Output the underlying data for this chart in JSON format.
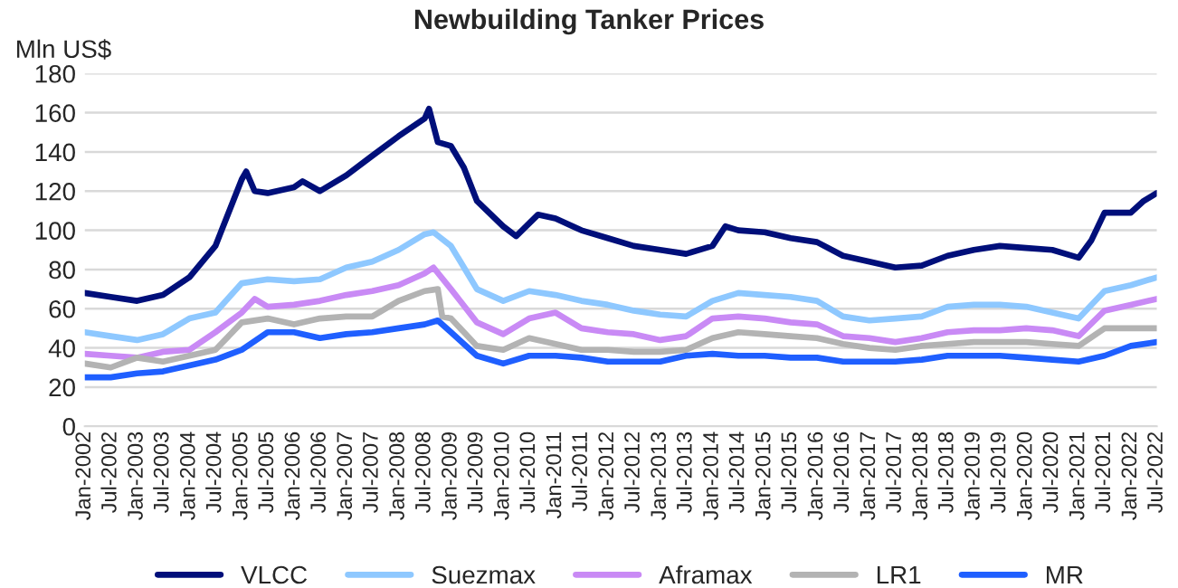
{
  "chart_data": {
    "type": "line",
    "title": "Newbuilding Tanker Prices",
    "ylabel": "Mln US$",
    "ylim": [
      0,
      180
    ],
    "yticks": [
      0,
      20,
      40,
      60,
      80,
      100,
      120,
      140,
      160,
      180
    ],
    "xlim": [
      "2002-01",
      "2022-07"
    ],
    "xticks": [
      {
        "value": "2002-01",
        "label": "Jan-2002"
      },
      {
        "value": "2002-07",
        "label": "Jul-2002"
      },
      {
        "value": "2003-01",
        "label": "Jan-2003"
      },
      {
        "value": "2003-07",
        "label": "Jul-2003"
      },
      {
        "value": "2004-01",
        "label": "Jan-2004"
      },
      {
        "value": "2004-07",
        "label": "Jul-2004"
      },
      {
        "value": "2005-01",
        "label": "Jan-2005"
      },
      {
        "value": "2005-07",
        "label": "Jul-2005"
      },
      {
        "value": "2006-01",
        "label": "Jan-2006"
      },
      {
        "value": "2006-07",
        "label": "Jul-2006"
      },
      {
        "value": "2007-01",
        "label": "Jan-2007"
      },
      {
        "value": "2007-07",
        "label": "Jul-2007"
      },
      {
        "value": "2008-01",
        "label": "Jan-2008"
      },
      {
        "value": "2008-07",
        "label": "Jul-2008"
      },
      {
        "value": "2009-01",
        "label": "Jan-2009"
      },
      {
        "value": "2009-07",
        "label": "Jul-2009"
      },
      {
        "value": "2010-01",
        "label": "Jan-2010"
      },
      {
        "value": "2010-07",
        "label": "Jul-2010"
      },
      {
        "value": "2011-01",
        "label": "Jan-2011"
      },
      {
        "value": "2011-07",
        "label": "Jul-2011"
      },
      {
        "value": "2012-01",
        "label": "Jan-2012"
      },
      {
        "value": "2012-07",
        "label": "Jul-2012"
      },
      {
        "value": "2013-01",
        "label": "Jan-2013"
      },
      {
        "value": "2013-07",
        "label": "Jul-2013"
      },
      {
        "value": "2014-01",
        "label": "Jan-2014"
      },
      {
        "value": "2014-07",
        "label": "Jul-2014"
      },
      {
        "value": "2015-01",
        "label": "Jan-2015"
      },
      {
        "value": "2015-07",
        "label": "Jul-2015"
      },
      {
        "value": "2016-01",
        "label": "Jan-2016"
      },
      {
        "value": "2016-07",
        "label": "Jul-2016"
      },
      {
        "value": "2017-01",
        "label": "Jan-2017"
      },
      {
        "value": "2017-07",
        "label": "Jul-2017"
      },
      {
        "value": "2018-01",
        "label": "Jan-2018"
      },
      {
        "value": "2018-07",
        "label": "Jul-2018"
      },
      {
        "value": "2019-01",
        "label": "Jan-2019"
      },
      {
        "value": "2019-07",
        "label": "Jul-2019"
      },
      {
        "value": "2020-01",
        "label": "Jan-2020"
      },
      {
        "value": "2020-07",
        "label": "Jul-2020"
      },
      {
        "value": "2021-01",
        "label": "Jan-2021"
      },
      {
        "value": "2021-07",
        "label": "Jul-2021"
      },
      {
        "value": "2022-01",
        "label": "Jan-2022"
      },
      {
        "value": "2022-07",
        "label": "Jul-2022"
      }
    ],
    "grid": "y",
    "legend": "bottom",
    "marker": "none",
    "line_style": "solid",
    "series": [
      {
        "name": "VLCC",
        "color": "#000f7a",
        "x": [
          "2002-01",
          "2002-07",
          "2003-01",
          "2003-07",
          "2004-01",
          "2004-07",
          "2005-01",
          "2005-02",
          "2005-04",
          "2005-07",
          "2006-01",
          "2006-03",
          "2006-07",
          "2007-01",
          "2007-07",
          "2008-01",
          "2008-07",
          "2008-08",
          "2008-10",
          "2009-01",
          "2009-04",
          "2009-07",
          "2010-01",
          "2010-04",
          "2010-09",
          "2011-01",
          "2011-07",
          "2012-01",
          "2012-07",
          "2013-01",
          "2013-07",
          "2014-01",
          "2014-04",
          "2014-07",
          "2015-01",
          "2015-07",
          "2016-01",
          "2016-07",
          "2017-01",
          "2017-07",
          "2018-01",
          "2018-07",
          "2019-01",
          "2019-07",
          "2020-01",
          "2020-07",
          "2021-01",
          "2021-04",
          "2021-07",
          "2022-01",
          "2022-04",
          "2022-07"
        ],
        "values": [
          68,
          66,
          64,
          67,
          76,
          92,
          126,
          130,
          120,
          119,
          122,
          125,
          120,
          128,
          138,
          148,
          157,
          162,
          145,
          143,
          132,
          115,
          102,
          97,
          108,
          106,
          100,
          96,
          92,
          90,
          88,
          92,
          102,
          100,
          99,
          96,
          94,
          87,
          84,
          81,
          82,
          87,
          90,
          92,
          91,
          90,
          86,
          95,
          109,
          109,
          115,
          119
        ]
      },
      {
        "name": "Suezmax",
        "color": "#8ec8ff",
        "x": [
          "2002-01",
          "2002-07",
          "2003-01",
          "2003-07",
          "2004-01",
          "2004-07",
          "2005-01",
          "2005-07",
          "2006-01",
          "2006-07",
          "2007-01",
          "2007-07",
          "2008-01",
          "2008-07",
          "2008-09",
          "2009-01",
          "2009-07",
          "2010-01",
          "2010-07",
          "2011-01",
          "2011-07",
          "2012-01",
          "2012-07",
          "2013-01",
          "2013-07",
          "2014-01",
          "2014-07",
          "2015-01",
          "2015-07",
          "2016-01",
          "2016-07",
          "2017-01",
          "2017-07",
          "2018-01",
          "2018-07",
          "2019-01",
          "2019-07",
          "2020-01",
          "2020-07",
          "2021-01",
          "2021-07",
          "2022-01",
          "2022-07"
        ],
        "values": [
          48,
          46,
          44,
          47,
          55,
          58,
          73,
          75,
          74,
          75,
          81,
          84,
          90,
          98,
          99,
          92,
          70,
          64,
          69,
          67,
          64,
          62,
          59,
          57,
          56,
          64,
          68,
          67,
          66,
          64,
          56,
          54,
          55,
          56,
          61,
          62,
          62,
          61,
          58,
          55,
          69,
          72,
          76
        ]
      },
      {
        "name": "Aframax",
        "color": "#c98af5",
        "x": [
          "2002-01",
          "2002-07",
          "2003-01",
          "2003-07",
          "2004-01",
          "2004-07",
          "2005-01",
          "2005-04",
          "2005-07",
          "2006-01",
          "2006-07",
          "2007-01",
          "2007-07",
          "2008-01",
          "2008-07",
          "2008-09",
          "2009-01",
          "2009-07",
          "2010-01",
          "2010-07",
          "2011-01",
          "2011-07",
          "2012-01",
          "2012-07",
          "2013-01",
          "2013-07",
          "2014-01",
          "2014-07",
          "2015-01",
          "2015-07",
          "2016-01",
          "2016-07",
          "2017-01",
          "2017-07",
          "2018-01",
          "2018-07",
          "2019-01",
          "2019-07",
          "2020-01",
          "2020-07",
          "2021-01",
          "2021-07",
          "2022-01",
          "2022-07"
        ],
        "values": [
          37,
          36,
          35,
          38,
          39,
          48,
          58,
          65,
          61,
          62,
          64,
          67,
          69,
          72,
          78,
          81,
          70,
          53,
          47,
          55,
          58,
          50,
          48,
          47,
          44,
          46,
          55,
          56,
          55,
          53,
          52,
          46,
          45,
          43,
          45,
          48,
          49,
          49,
          50,
          49,
          46,
          59,
          62,
          65
        ]
      },
      {
        "name": "LR1",
        "color": "#b3b3b3",
        "x": [
          "2002-01",
          "2002-07",
          "2003-01",
          "2003-07",
          "2004-01",
          "2004-07",
          "2005-01",
          "2005-07",
          "2006-01",
          "2006-07",
          "2007-01",
          "2007-07",
          "2008-01",
          "2008-07",
          "2008-10",
          "2008-11",
          "2009-01",
          "2009-07",
          "2010-01",
          "2010-07",
          "2011-01",
          "2011-07",
          "2012-01",
          "2012-07",
          "2013-01",
          "2013-07",
          "2014-01",
          "2014-07",
          "2015-01",
          "2015-07",
          "2016-01",
          "2016-07",
          "2017-01",
          "2017-07",
          "2018-01",
          "2018-07",
          "2019-01",
          "2019-07",
          "2020-01",
          "2020-07",
          "2021-01",
          "2021-07",
          "2022-01",
          "2022-07"
        ],
        "values": [
          32,
          30,
          35,
          33,
          36,
          39,
          53,
          55,
          52,
          55,
          56,
          56,
          64,
          69,
          70,
          56,
          55,
          41,
          39,
          45,
          42,
          39,
          39,
          38,
          38,
          39,
          45,
          48,
          47,
          46,
          45,
          42,
          40,
          39,
          41,
          42,
          43,
          43,
          43,
          42,
          41,
          50,
          50,
          50
        ]
      },
      {
        "name": "MR",
        "color": "#1f5fff",
        "x": [
          "2002-01",
          "2002-07",
          "2003-01",
          "2003-07",
          "2004-01",
          "2004-07",
          "2005-01",
          "2005-07",
          "2006-01",
          "2006-07",
          "2007-01",
          "2007-07",
          "2008-01",
          "2008-07",
          "2008-10",
          "2009-01",
          "2009-07",
          "2010-01",
          "2010-07",
          "2011-01",
          "2011-07",
          "2012-01",
          "2012-07",
          "2013-01",
          "2013-07",
          "2014-01",
          "2014-07",
          "2015-01",
          "2015-07",
          "2016-01",
          "2016-07",
          "2017-01",
          "2017-07",
          "2018-01",
          "2018-07",
          "2019-01",
          "2019-07",
          "2020-01",
          "2020-07",
          "2021-01",
          "2021-07",
          "2022-01",
          "2022-07"
        ],
        "values": [
          25,
          25,
          27,
          28,
          31,
          34,
          39,
          48,
          48,
          45,
          47,
          48,
          50,
          52,
          54,
          48,
          36,
          32,
          36,
          36,
          35,
          33,
          33,
          33,
          36,
          37,
          36,
          36,
          35,
          35,
          33,
          33,
          33,
          34,
          36,
          36,
          36,
          35,
          34,
          33,
          36,
          41,
          43
        ]
      }
    ]
  }
}
